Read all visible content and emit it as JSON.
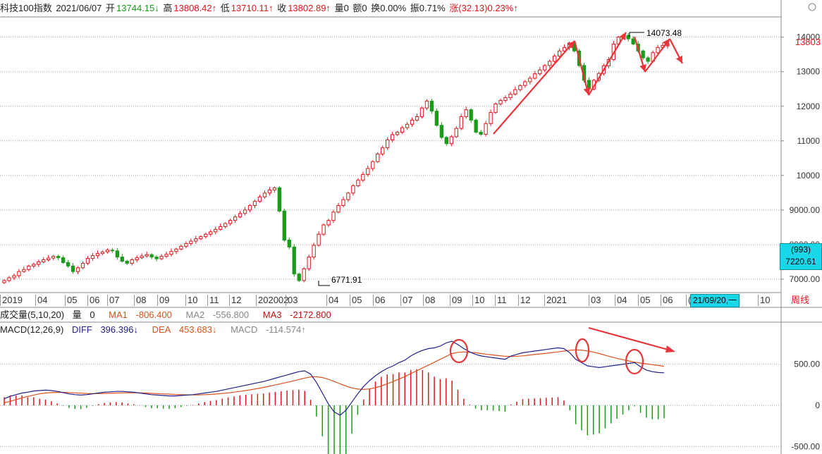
{
  "header": {
    "title": "科技100指数",
    "date": "2021/06/07",
    "open_label": "开",
    "open_value": "13744.15↓",
    "high_label": "高",
    "high_value": "13808.42↑",
    "low_label": "低",
    "low_value": "13710.11↑",
    "close_label": "收",
    "close_value": "13802.89↑",
    "volume_text": "量0",
    "amount_text": "额0",
    "turnover_text": "换0.00%",
    "amplitude_text": "振0.71%",
    "change_text": "涨(32.13)0.23%↑"
  },
  "volume_bar": {
    "title": "成交量(5,10,20)",
    "vol_label": "量",
    "vol_value": "0",
    "ma1_label": "MA1",
    "ma1_value": "-806.400",
    "ma2_label": "MA2",
    "ma2_value": "-556.800",
    "ma3_label": "MA3",
    "ma3_value": "-2172.800"
  },
  "macd_bar": {
    "title": "MACD(12,26,9)",
    "diff_label": "DIFF",
    "diff_value": "396.396↓",
    "dea_label": "DEA",
    "dea_value": "453.683↓",
    "macd_label": "MACD",
    "macd_value": "-114.574↑"
  },
  "price_axis_labels": [
    "14000",
    "13000",
    "12000",
    "11000",
    "10000",
    "9000.00",
    "8000.00",
    "7000.00"
  ],
  "macd_axis_labels": [
    "500.00",
    "0",
    "-500.00"
  ],
  "current_price": "13803",
  "price_tag": {
    "count": "(993)",
    "value": "7220.61"
  },
  "annotations": {
    "high_note": "14073.48",
    "low_note": "6771.91"
  },
  "date_ticks": [
    "2019",
    "04",
    "05",
    "06",
    "07",
    "08",
    "09",
    "10",
    "11",
    "12",
    "202002",
    "03",
    "04",
    "05",
    "06",
    "07",
    "08",
    "09",
    "10",
    "11",
    "12",
    "2021",
    "03",
    "04",
    "05",
    "06",
    "(",
    "10"
  ],
  "cursor_date": "21/09/20,一",
  "period_button": "周线",
  "colors": {
    "up": "#e0161d",
    "down": "#1a9b1a",
    "diff": "#1f1f8a",
    "dea": "#e0501e",
    "grid": "#a0a0a0"
  },
  "chart_data": [
    {
      "type": "candlestick",
      "title": "科技100指数",
      "ylim": [
        6771.91,
        14073.48
      ],
      "y_ticks": [
        7000,
        8000,
        9000,
        10000,
        11000,
        12000,
        13000,
        14000
      ],
      "grid": true,
      "annotations": [
        {
          "label": "14073.48",
          "value": 14073.48
        },
        {
          "label": "6771.91",
          "value": 6771.91
        }
      ],
      "close": [
        6960,
        7040,
        7100,
        7220,
        7280,
        7380,
        7430,
        7500,
        7560,
        7610,
        7660,
        7620,
        7480,
        7380,
        7220,
        7330,
        7460,
        7600,
        7680,
        7740,
        7790,
        7840,
        7820,
        7640,
        7520,
        7460,
        7560,
        7620,
        7670,
        7710,
        7640,
        7590,
        7660,
        7720,
        7800,
        7870,
        7950,
        8030,
        8100,
        8170,
        8230,
        8300,
        8370,
        8440,
        8520,
        8610,
        8700,
        8800,
        8900,
        9000,
        9130,
        9250,
        9380,
        9490,
        9580,
        9640,
        8970,
        8130,
        7930,
        7150,
        6960,
        7300,
        7640,
        7980,
        8300,
        8570,
        8700,
        8940,
        9130,
        9300,
        9490,
        9700,
        9860,
        10030,
        10200,
        10400,
        10620,
        10800,
        11030,
        11180,
        11250,
        11380,
        11480,
        11600,
        11700,
        11950,
        12150,
        11860,
        11450,
        11100,
        10920,
        11120,
        11360,
        11700,
        11900,
        11600,
        11250,
        11190,
        11500,
        11820,
        12070,
        12170,
        12250,
        12350,
        12480,
        12600,
        12710,
        12810,
        12940,
        13050,
        13180,
        13300,
        13450,
        13600,
        13700,
        13830,
        13600,
        13180,
        12750,
        12500,
        12750,
        12950,
        13170,
        13350,
        13800,
        14000,
        14050,
        13950,
        13800,
        13600,
        13400,
        13300,
        13550,
        13700,
        13760,
        13800
      ],
      "open": [
        6900,
        6960,
        7040,
        7100,
        7220,
        7280,
        7380,
        7430,
        7500,
        7560,
        7610,
        7660,
        7620,
        7480,
        7380,
        7220,
        7330,
        7460,
        7600,
        7680,
        7740,
        7790,
        7840,
        7820,
        7640,
        7520,
        7460,
        7560,
        7620,
        7670,
        7710,
        7640,
        7590,
        7660,
        7720,
        7800,
        7870,
        7950,
        8030,
        8100,
        8170,
        8230,
        8300,
        8370,
        8440,
        8520,
        8610,
        8700,
        8800,
        8900,
        9000,
        9130,
        9250,
        9380,
        9490,
        9580,
        9640,
        8970,
        8130,
        7930,
        7150,
        6960,
        7300,
        7640,
        7980,
        8300,
        8570,
        8700,
        8940,
        9130,
        9300,
        9490,
        9700,
        9860,
        10030,
        10200,
        10400,
        10620,
        10800,
        11030,
        11180,
        11250,
        11380,
        11480,
        11600,
        11700,
        11950,
        12150,
        11860,
        11450,
        11100,
        10920,
        11120,
        11360,
        11700,
        11900,
        11600,
        11250,
        11190,
        11500,
        11820,
        12070,
        12170,
        12250,
        12350,
        12480,
        12600,
        12710,
        12810,
        12940,
        13050,
        13180,
        13300,
        13450,
        13600,
        13700,
        13830,
        13600,
        13180,
        12750,
        12500,
        12750,
        12950,
        13170,
        13350,
        13800,
        14000,
        14050,
        13950,
        13800,
        13600,
        13400,
        13300,
        13550,
        13700,
        13745
      ],
      "volume": {
        "vol": 0,
        "ma1": -806.4,
        "ma2": -556.8,
        "ma3": -2172.8
      }
    },
    {
      "type": "line",
      "title": "MACD(12,26,9)",
      "y_ticks": [
        -500,
        0,
        500
      ],
      "series": [
        {
          "name": "DIFF",
          "last": 396.396,
          "values": [
            80,
            110,
            130,
            150,
            160,
            175,
            180,
            185,
            180,
            170,
            155,
            140,
            130,
            125,
            130,
            140,
            150,
            160,
            165,
            170,
            170,
            165,
            160,
            150,
            140,
            130,
            125,
            120,
            115,
            115,
            120,
            125,
            130,
            140,
            150,
            160,
            170,
            185,
            200,
            215,
            230,
            245,
            260,
            275,
            290,
            310,
            330,
            350,
            370,
            390,
            410,
            420,
            380,
            280,
            150,
            20,
            -80,
            -120,
            -60,
            40,
            140,
            230,
            300,
            360,
            410,
            450,
            480,
            520,
            550,
            600,
            640,
            670,
            690,
            700,
            720,
            760,
            780,
            740,
            690,
            650,
            620,
            600,
            590,
            580,
            570,
            560,
            600,
            620,
            640,
            650,
            660,
            670,
            680,
            690,
            700,
            690,
            640,
            560,
            520,
            480,
            470,
            460,
            470,
            480,
            490,
            500,
            510,
            520,
            470,
            430,
            410,
            400,
            396.396
          ]
        },
        {
          "name": "DEA",
          "last": 453.683,
          "values": [
            30,
            50,
            70,
            90,
            110,
            125,
            140,
            150,
            155,
            158,
            158,
            156,
            152,
            148,
            145,
            143,
            143,
            145,
            147,
            150,
            152,
            153,
            153,
            152,
            150,
            147,
            143,
            140,
            136,
            132,
            130,
            128,
            127,
            128,
            130,
            133,
            138,
            144,
            151,
            160,
            170,
            180,
            192,
            205,
            218,
            232,
            248,
            264,
            280,
            297,
            315,
            332,
            346,
            348,
            338,
            318,
            292,
            262,
            236,
            212,
            198,
            194,
            200,
            215,
            236,
            262,
            290,
            320,
            350,
            385,
            420,
            455,
            490,
            525,
            560,
            595,
            630,
            645,
            650,
            645,
            640,
            630,
            620,
            612,
            605,
            598,
            595,
            598,
            602,
            610,
            618,
            626,
            634,
            642,
            650,
            660,
            670,
            675,
            672,
            662,
            648,
            630,
            610,
            590,
            572,
            556,
            540,
            526,
            515,
            505,
            495,
            485,
            475,
            465,
            458,
            453.683
          ]
        },
        {
          "name": "MACD",
          "last": -114.574
        }
      ]
    }
  ]
}
